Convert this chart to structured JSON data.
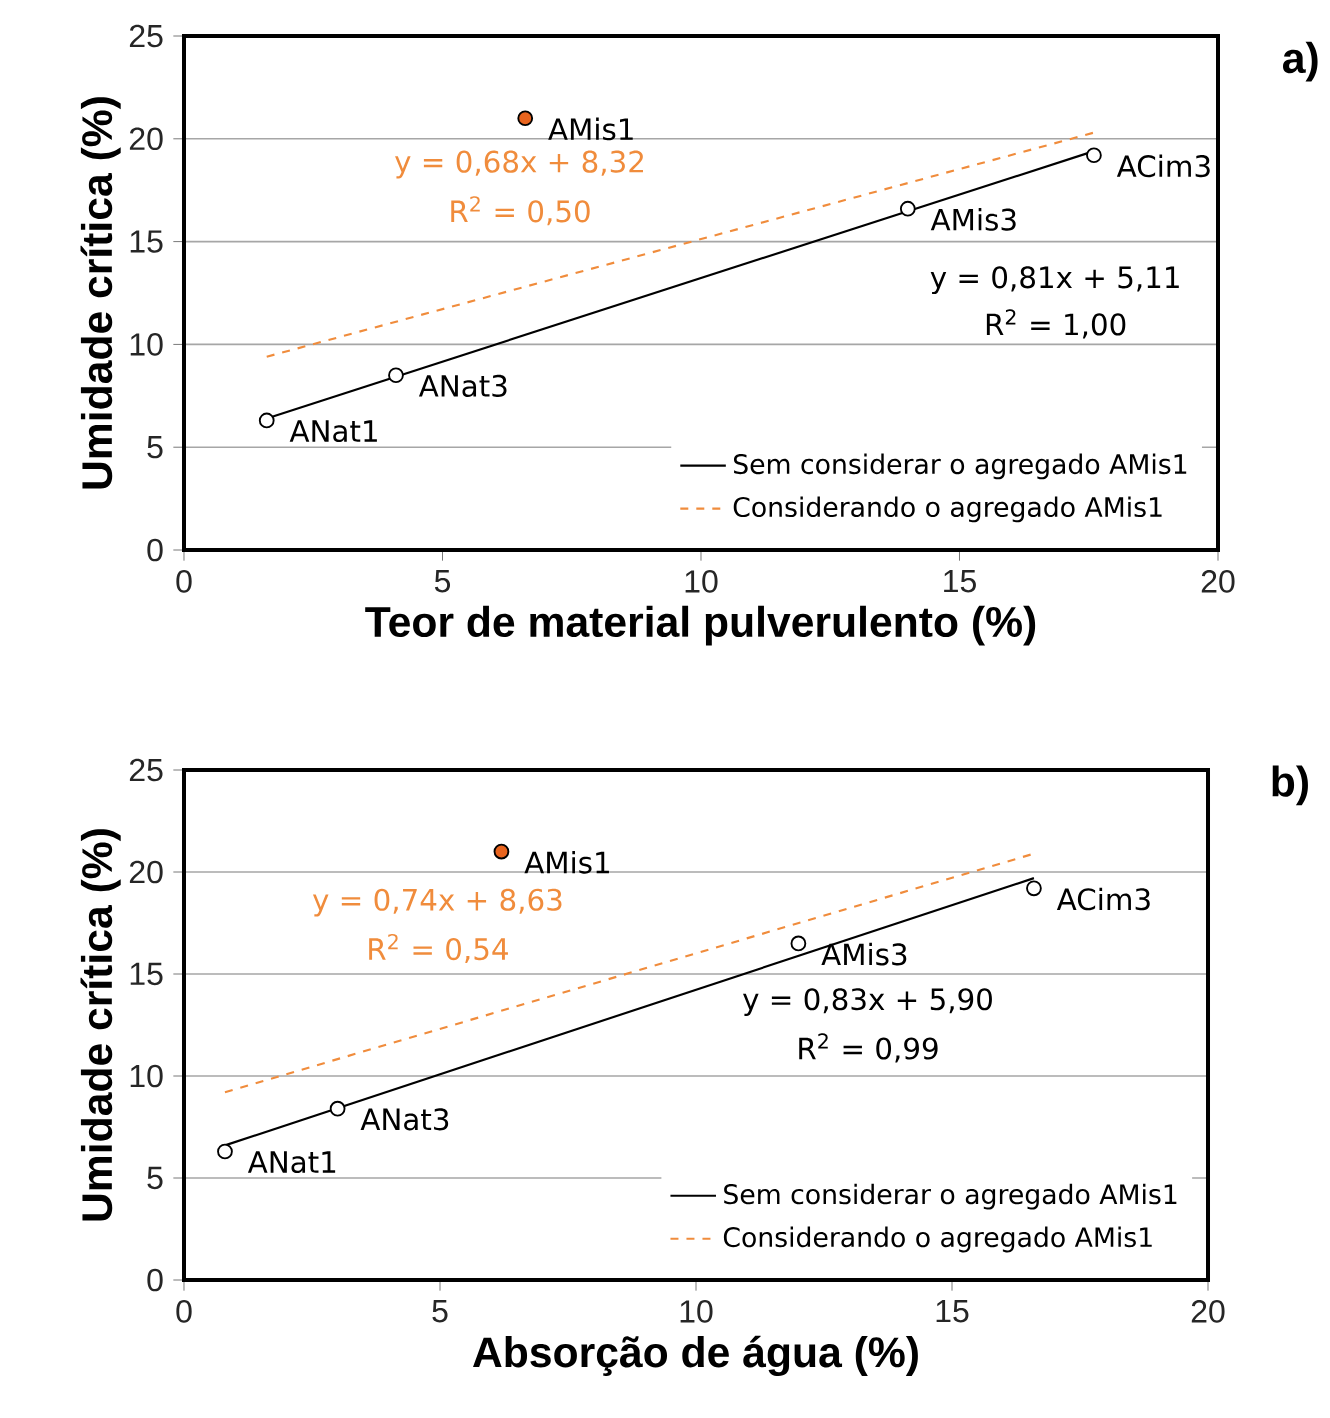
{
  "chart_data": [
    {
      "type": "scatter",
      "xlabel": "Teor de material pulverulento (%)",
      "ylabel": "Umidade crítica (%)",
      "xlim": [
        0,
        20
      ],
      "ylim": [
        0,
        25
      ],
      "xticks": [
        0,
        5,
        10,
        15,
        20
      ],
      "yticks": [
        0,
        5,
        10,
        15,
        20,
        25
      ],
      "grid": "y",
      "legend": "bottom right",
      "marker": "circle",
      "series": [
        {
          "type": "line",
          "name": "Sem considerar o agregado AMis1",
          "color": "#000000",
          "line_style": "solid",
          "marker": "none",
          "x": [
            1.6,
            17.6
          ],
          "values": [
            6.4,
            19.4
          ]
        },
        {
          "type": "line",
          "name": "Considerando o agregado AMis1",
          "color": "#f08c3c",
          "line_style": "dashed",
          "marker": "none",
          "x": [
            1.6,
            17.6
          ],
          "values": [
            9.4,
            20.3
          ]
        },
        {
          "color": "#000000",
          "x": [
            1.6,
            4.1,
            14.0,
            17.6
          ],
          "values": [
            6.3,
            8.5,
            16.6,
            19.2
          ]
        },
        {
          "color": "#e8641e",
          "x": [
            6.6
          ],
          "values": [
            21.0
          ]
        }
      ],
      "annotations": [
        "y = 0,68x + 8,32",
        "R$^{2}$ = 0,50",
        "y = 0,81x + 5,11",
        "R$^{2}$ = 1,00",
        "a)",
        {
          "text": "ANat1",
          "x": 1.6,
          "y": 6.3
        },
        {
          "text": "ANat3",
          "x": 4.1,
          "y": 8.5
        },
        {
          "text": "AMis3",
          "x": 14.0,
          "y": 16.6
        },
        {
          "text": "ACim3",
          "x": 17.6,
          "y": 19.2
        },
        {
          "text": "AMis1",
          "x": 6.6,
          "y": 21.0
        }
      ]
    },
    {
      "type": "scatter",
      "xlabel": "Absorção de água (%)",
      "ylabel": "Umidade crítica (%)",
      "xlim": [
        0,
        20
      ],
      "ylim": [
        0,
        25
      ],
      "xticks": [
        0,
        5,
        10,
        15,
        20
      ],
      "yticks": [
        0,
        5,
        10,
        15,
        20,
        25
      ],
      "grid": "y",
      "legend": "bottom right",
      "marker": "circle",
      "series": [
        {
          "type": "line",
          "name": "Sem considerar o agregado AMis1",
          "color": "#000000",
          "line_style": "solid",
          "marker": "none",
          "x": [
            0.8,
            16.6
          ],
          "values": [
            6.6,
            19.7
          ]
        },
        {
          "type": "line",
          "name": "Considerando o agregado AMis1",
          "color": "#f08c3c",
          "line_style": "dashed",
          "marker": "none",
          "x": [
            0.8,
            16.6
          ],
          "values": [
            9.2,
            20.9
          ]
        },
        {
          "color": "#000000",
          "x": [
            0.8,
            3.0,
            12.0,
            16.6
          ],
          "values": [
            6.3,
            8.4,
            16.5,
            19.2
          ]
        },
        {
          "color": "#e8641e",
          "x": [
            6.2
          ],
          "values": [
            21.0
          ]
        }
      ],
      "annotations": [
        "y = 0,74x + 8,63",
        "R$^{2}$ = 0,54",
        "y = 0,83x + 5,90",
        "R$^{2}$ = 0,99",
        "b)",
        {
          "text": "ANat1",
          "x": 0.8,
          "y": 6.3
        },
        {
          "text": "ANat3",
          "x": 3.0,
          "y": 8.4
        },
        {
          "text": "AMis3",
          "x": 12.0,
          "y": 16.5
        },
        {
          "text": "ACim3",
          "x": 16.6,
          "y": 19.2
        },
        {
          "text": "AMis1",
          "x": 6.2,
          "y": 21.0
        }
      ]
    }
  ]
}
